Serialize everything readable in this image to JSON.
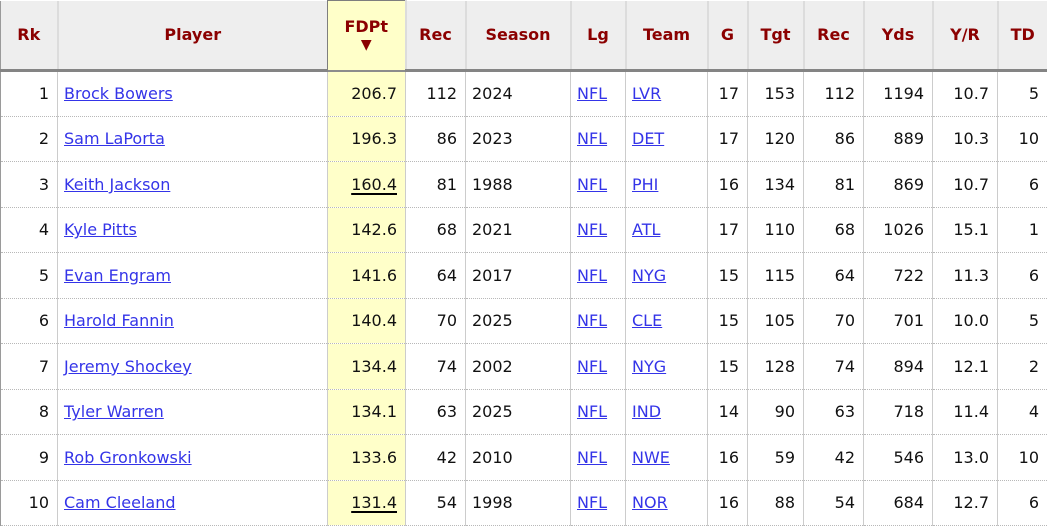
{
  "colors": {
    "header_bg": "#eeeeee",
    "header_text": "#8b0000",
    "sorted_bg": "#ffffc9",
    "link": "#3434e8",
    "row_bg": "#ffffff",
    "header_border": "#848484",
    "grid": "#cccccc",
    "dotted": "#b8b8b8"
  },
  "table": {
    "sort_icon": "▼",
    "sorted_column": "FDPt",
    "sort_direction": "descending",
    "columns": [
      {
        "key": "rk",
        "label": "Rk",
        "type": "text",
        "align": "right"
      },
      {
        "key": "player",
        "label": "Player",
        "type": "link",
        "align": "left"
      },
      {
        "key": "fdpt",
        "label": "FDPt",
        "type": "text",
        "align": "right",
        "sorted": true
      },
      {
        "key": "rec",
        "label": "Rec",
        "type": "text",
        "align": "right"
      },
      {
        "key": "season",
        "label": "Season",
        "type": "text",
        "align": "left"
      },
      {
        "key": "lg",
        "label": "Lg",
        "type": "link",
        "align": "left"
      },
      {
        "key": "team",
        "label": "Team",
        "type": "link",
        "align": "left"
      },
      {
        "key": "g",
        "label": "G",
        "type": "text",
        "align": "right"
      },
      {
        "key": "tgt",
        "label": "Tgt",
        "type": "text",
        "align": "right"
      },
      {
        "key": "rec2",
        "label": "Rec",
        "type": "text",
        "align": "right"
      },
      {
        "key": "yds",
        "label": "Yds",
        "type": "text",
        "align": "right"
      },
      {
        "key": "yr",
        "label": "Y/R",
        "type": "text",
        "align": "right"
      },
      {
        "key": "td",
        "label": "TD",
        "type": "text",
        "align": "right"
      }
    ],
    "rows": [
      {
        "rk": "1",
        "player": "Brock Bowers",
        "fdpt": "206.7",
        "fdpt_led": false,
        "rec": "112",
        "season": "2024",
        "lg": "NFL",
        "team": "LVR",
        "g": "17",
        "tgt": "153",
        "rec2": "112",
        "yds": "1194",
        "yr": "10.7",
        "td": "5"
      },
      {
        "rk": "2",
        "player": "Sam LaPorta",
        "fdpt": "196.3",
        "fdpt_led": false,
        "rec": "86",
        "season": "2023",
        "lg": "NFL",
        "team": "DET",
        "g": "17",
        "tgt": "120",
        "rec2": "86",
        "yds": "889",
        "yr": "10.3",
        "td": "10"
      },
      {
        "rk": "3",
        "player": "Keith Jackson",
        "fdpt": "160.4",
        "fdpt_led": true,
        "rec": "81",
        "season": "1988",
        "lg": "NFL",
        "team": "PHI",
        "g": "16",
        "tgt": "134",
        "rec2": "81",
        "yds": "869",
        "yr": "10.7",
        "td": "6"
      },
      {
        "rk": "4",
        "player": "Kyle Pitts",
        "fdpt": "142.6",
        "fdpt_led": false,
        "rec": "68",
        "season": "2021",
        "lg": "NFL",
        "team": "ATL",
        "g": "17",
        "tgt": "110",
        "rec2": "68",
        "yds": "1026",
        "yr": "15.1",
        "td": "1"
      },
      {
        "rk": "5",
        "player": "Evan Engram",
        "fdpt": "141.6",
        "fdpt_led": false,
        "rec": "64",
        "season": "2017",
        "lg": "NFL",
        "team": "NYG",
        "g": "15",
        "tgt": "115",
        "rec2": "64",
        "yds": "722",
        "yr": "11.3",
        "td": "6"
      },
      {
        "rk": "6",
        "player": "Harold Fannin",
        "fdpt": "140.4",
        "fdpt_led": false,
        "rec": "70",
        "season": "2025",
        "lg": "NFL",
        "team": "CLE",
        "g": "15",
        "tgt": "105",
        "rec2": "70",
        "yds": "701",
        "yr": "10.0",
        "td": "5"
      },
      {
        "rk": "7",
        "player": "Jeremy Shockey",
        "fdpt": "134.4",
        "fdpt_led": false,
        "rec": "74",
        "season": "2002",
        "lg": "NFL",
        "team": "NYG",
        "g": "15",
        "tgt": "128",
        "rec2": "74",
        "yds": "894",
        "yr": "12.1",
        "td": "2"
      },
      {
        "rk": "8",
        "player": "Tyler Warren",
        "fdpt": "134.1",
        "fdpt_led": false,
        "rec": "63",
        "season": "2025",
        "lg": "NFL",
        "team": "IND",
        "g": "14",
        "tgt": "90",
        "rec2": "63",
        "yds": "718",
        "yr": "11.4",
        "td": "4"
      },
      {
        "rk": "9",
        "player": "Rob Gronkowski",
        "fdpt": "133.6",
        "fdpt_led": false,
        "rec": "42",
        "season": "2010",
        "lg": "NFL",
        "team": "NWE",
        "g": "16",
        "tgt": "59",
        "rec2": "42",
        "yds": "546",
        "yr": "13.0",
        "td": "10"
      },
      {
        "rk": "10",
        "player": "Cam Cleeland",
        "fdpt": "131.4",
        "fdpt_led": true,
        "rec": "54",
        "season": "1998",
        "lg": "NFL",
        "team": "NOR",
        "g": "16",
        "tgt": "88",
        "rec2": "54",
        "yds": "684",
        "yr": "12.7",
        "td": "6"
      }
    ]
  }
}
